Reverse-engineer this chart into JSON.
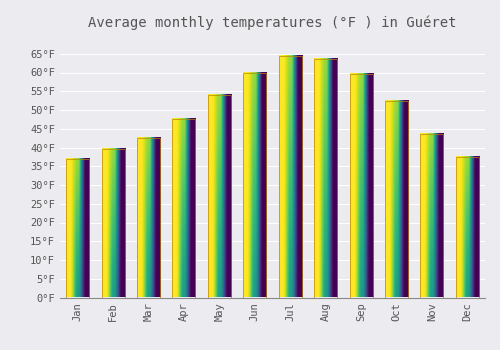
{
  "title": "Average monthly temperatures (°F ) in Guéret",
  "months": [
    "Jan",
    "Feb",
    "Mar",
    "Apr",
    "May",
    "Jun",
    "Jul",
    "Aug",
    "Sep",
    "Oct",
    "Nov",
    "Dec"
  ],
  "values": [
    37,
    39.5,
    42.5,
    47.5,
    54,
    60,
    64.5,
    63.5,
    59.5,
    52.5,
    43.5,
    37.5
  ],
  "bar_color": "#FFA500",
  "bar_edge_color": "#B8860B",
  "ylim": [
    0,
    70
  ],
  "yticks": [
    0,
    5,
    10,
    15,
    20,
    25,
    30,
    35,
    40,
    45,
    50,
    55,
    60,
    65
  ],
  "ytick_labels": [
    "0°F",
    "5°F",
    "10°F",
    "15°F",
    "20°F",
    "25°F",
    "30°F",
    "35°F",
    "40°F",
    "45°F",
    "50°F",
    "55°F",
    "60°F",
    "65°F"
  ],
  "background_color": "#EBEBF0",
  "grid_color": "#FFFFFF",
  "title_fontsize": 10,
  "tick_fontsize": 7.5,
  "font_color": "#555555"
}
